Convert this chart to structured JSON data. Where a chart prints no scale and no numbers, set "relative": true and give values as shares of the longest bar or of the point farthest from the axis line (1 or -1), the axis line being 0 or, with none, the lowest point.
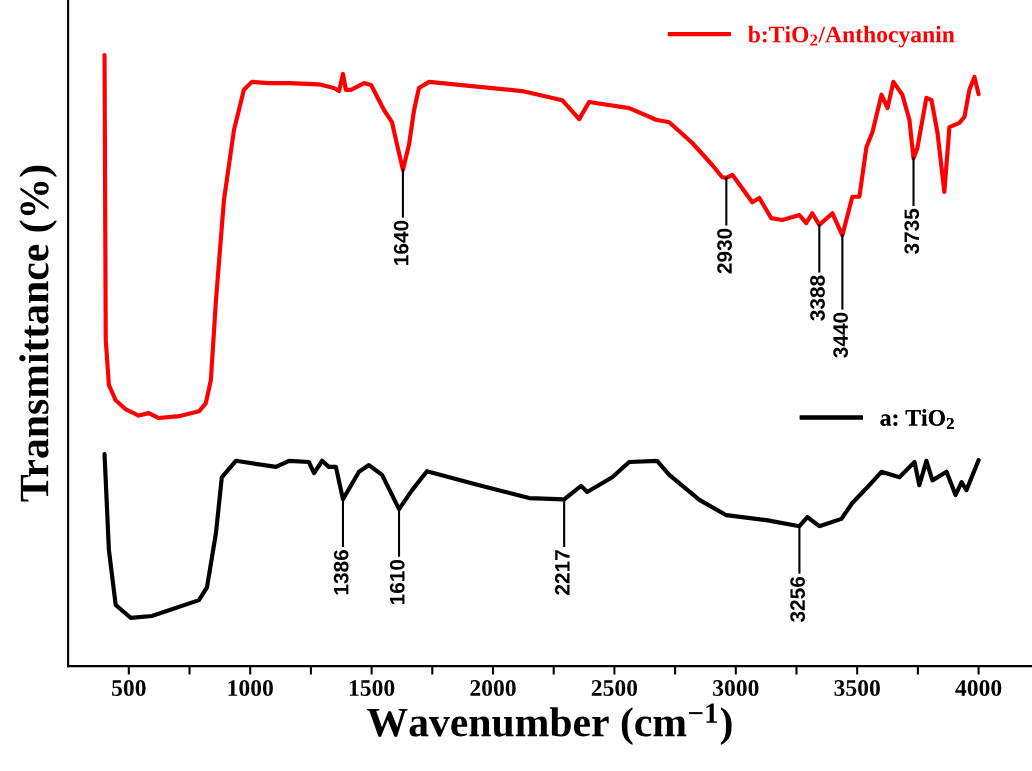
{
  "chart_data": {
    "type": "line",
    "relative": true,
    "xlabel": "Wavenumber (cm$^{−1}$)",
    "ylabel": "Transmittance (%)",
    "xlim": [
      250,
      4220
    ],
    "xticks": [
      500,
      {
        "value": 750,
        "label": null
      },
      1000,
      {
        "value": 1250,
        "label": null
      },
      1500,
      {
        "value": 1750,
        "label": null
      },
      2000,
      {
        "value": 2250,
        "label": null
      },
      2500,
      {
        "value": 2750,
        "label": null
      },
      3000,
      {
        "value": 3250,
        "label": null
      },
      3500,
      {
        "value": 3750,
        "label": null
      },
      4000
    ],
    "legend": "right",
    "grid": false,
    "marker": "none",
    "line_style": "solid",
    "series": [
      {
        "name": "b:TiO$_{2}$/Anthocyanin",
        "color": "#ff0000",
        "x": [
          400,
          405,
          418,
          446,
          488,
          541,
          582,
          624,
          706,
          789,
          817,
          838,
          859,
          892,
          933,
          974,
          1007,
          1077,
          1160,
          1283,
          1345,
          1366,
          1382,
          1394,
          1415,
          1469,
          1498,
          1551,
          1584,
          1605,
          1629,
          1654,
          1675,
          1695,
          1737,
          2120,
          2285,
          2355,
          2396,
          2561,
          2672,
          2726,
          2821,
          2903,
          2944,
          2961,
          2986,
          3068,
          3097,
          3146,
          3192,
          3262,
          3290,
          3315,
          3344,
          3398,
          3439,
          3480,
          3509,
          3538,
          3563,
          3600,
          3625,
          3649,
          3686,
          3715,
          3732,
          3748,
          3785,
          3806,
          3831,
          3859,
          3880,
          3921,
          3942,
          3962,
          3983,
          4000
        ],
        "values": [
          1.0,
          0.534,
          0.46,
          0.435,
          0.42,
          0.41,
          0.414,
          0.406,
          0.409,
          0.417,
          0.43,
          0.468,
          0.599,
          0.763,
          0.877,
          0.943,
          0.956,
          0.954,
          0.954,
          0.952,
          0.946,
          0.941,
          0.969,
          0.943,
          0.943,
          0.954,
          0.951,
          0.91,
          0.89,
          0.853,
          0.812,
          0.853,
          0.91,
          0.946,
          0.956,
          0.941,
          0.926,
          0.895,
          0.923,
          0.913,
          0.894,
          0.89,
          0.856,
          0.82,
          0.8,
          0.799,
          0.804,
          0.759,
          0.766,
          0.733,
          0.73,
          0.738,
          0.725,
          0.741,
          0.722,
          0.741,
          0.705,
          0.768,
          0.768,
          0.849,
          0.874,
          0.935,
          0.913,
          0.956,
          0.935,
          0.894,
          0.831,
          0.848,
          0.93,
          0.926,
          0.872,
          0.776,
          0.882,
          0.889,
          0.899,
          0.943,
          0.964,
          0.936
        ]
      },
      {
        "name": "a: TiO$_{2}$",
        "color": "#000000",
        "x": [
          400,
          418,
          446,
          508,
          595,
          789,
          822,
          859,
          883,
          941,
          1106,
          1160,
          1242,
          1263,
          1296,
          1324,
          1353,
          1382,
          1448,
          1489,
          1543,
          1613,
          1667,
          1728,
          1943,
          2149,
          2293,
          2363,
          2388,
          2491,
          2561,
          2676,
          2726,
          2850,
          2961,
          3126,
          3262,
          3295,
          3344,
          3435,
          3480,
          3538,
          3600,
          3674,
          3736,
          3756,
          3785,
          3810,
          3868,
          3905,
          3930,
          3950,
          4000
        ],
        "values": [
          0.347,
          0.19,
          0.1,
          0.079,
          0.082,
          0.108,
          0.129,
          0.218,
          0.309,
          0.336,
          0.326,
          0.336,
          0.334,
          0.316,
          0.336,
          0.326,
          0.326,
          0.273,
          0.318,
          0.329,
          0.313,
          0.257,
          0.288,
          0.319,
          0.296,
          0.275,
          0.273,
          0.295,
          0.285,
          0.309,
          0.334,
          0.336,
          0.313,
          0.272,
          0.247,
          0.239,
          0.229,
          0.244,
          0.229,
          0.241,
          0.267,
          0.291,
          0.318,
          0.309,
          0.334,
          0.296,
          0.336,
          0.304,
          0.318,
          0.28,
          0.301,
          0.288,
          0.337
        ]
      }
    ],
    "annotations": [
      {
        "text": "1640",
        "x": 1629,
        "y": 0.812
      },
      {
        "text": "2930",
        "x": 2961,
        "y": 0.799
      },
      {
        "text": "3388",
        "x": 3344,
        "y": 0.722
      },
      {
        "text": "3440",
        "x": 3439,
        "y": 0.705
      },
      {
        "text": "3735",
        "x": 3732,
        "y": 0.831
      },
      {
        "text": "1386",
        "x": 1382,
        "y": 0.273
      },
      {
        "text": "1610",
        "x": 1613,
        "y": 0.257
      },
      {
        "text": "2217",
        "x": 2293,
        "y": 0.273
      },
      {
        "text": "3256",
        "x": 3262,
        "y": 0.229
      }
    ]
  }
}
